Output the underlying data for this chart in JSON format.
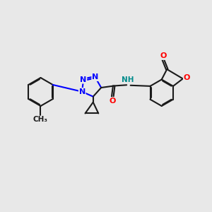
{
  "background_color": "#e8e8e8",
  "bond_color": "#1a1a1a",
  "nitrogen_color": "#0000ff",
  "oxygen_color": "#ff0000",
  "nh_color": "#008b8b",
  "bond_width": 1.5,
  "dbo": 0.06,
  "font_size_atom": 8,
  "xlim": [
    0,
    12
  ],
  "ylim": [
    0,
    10
  ]
}
